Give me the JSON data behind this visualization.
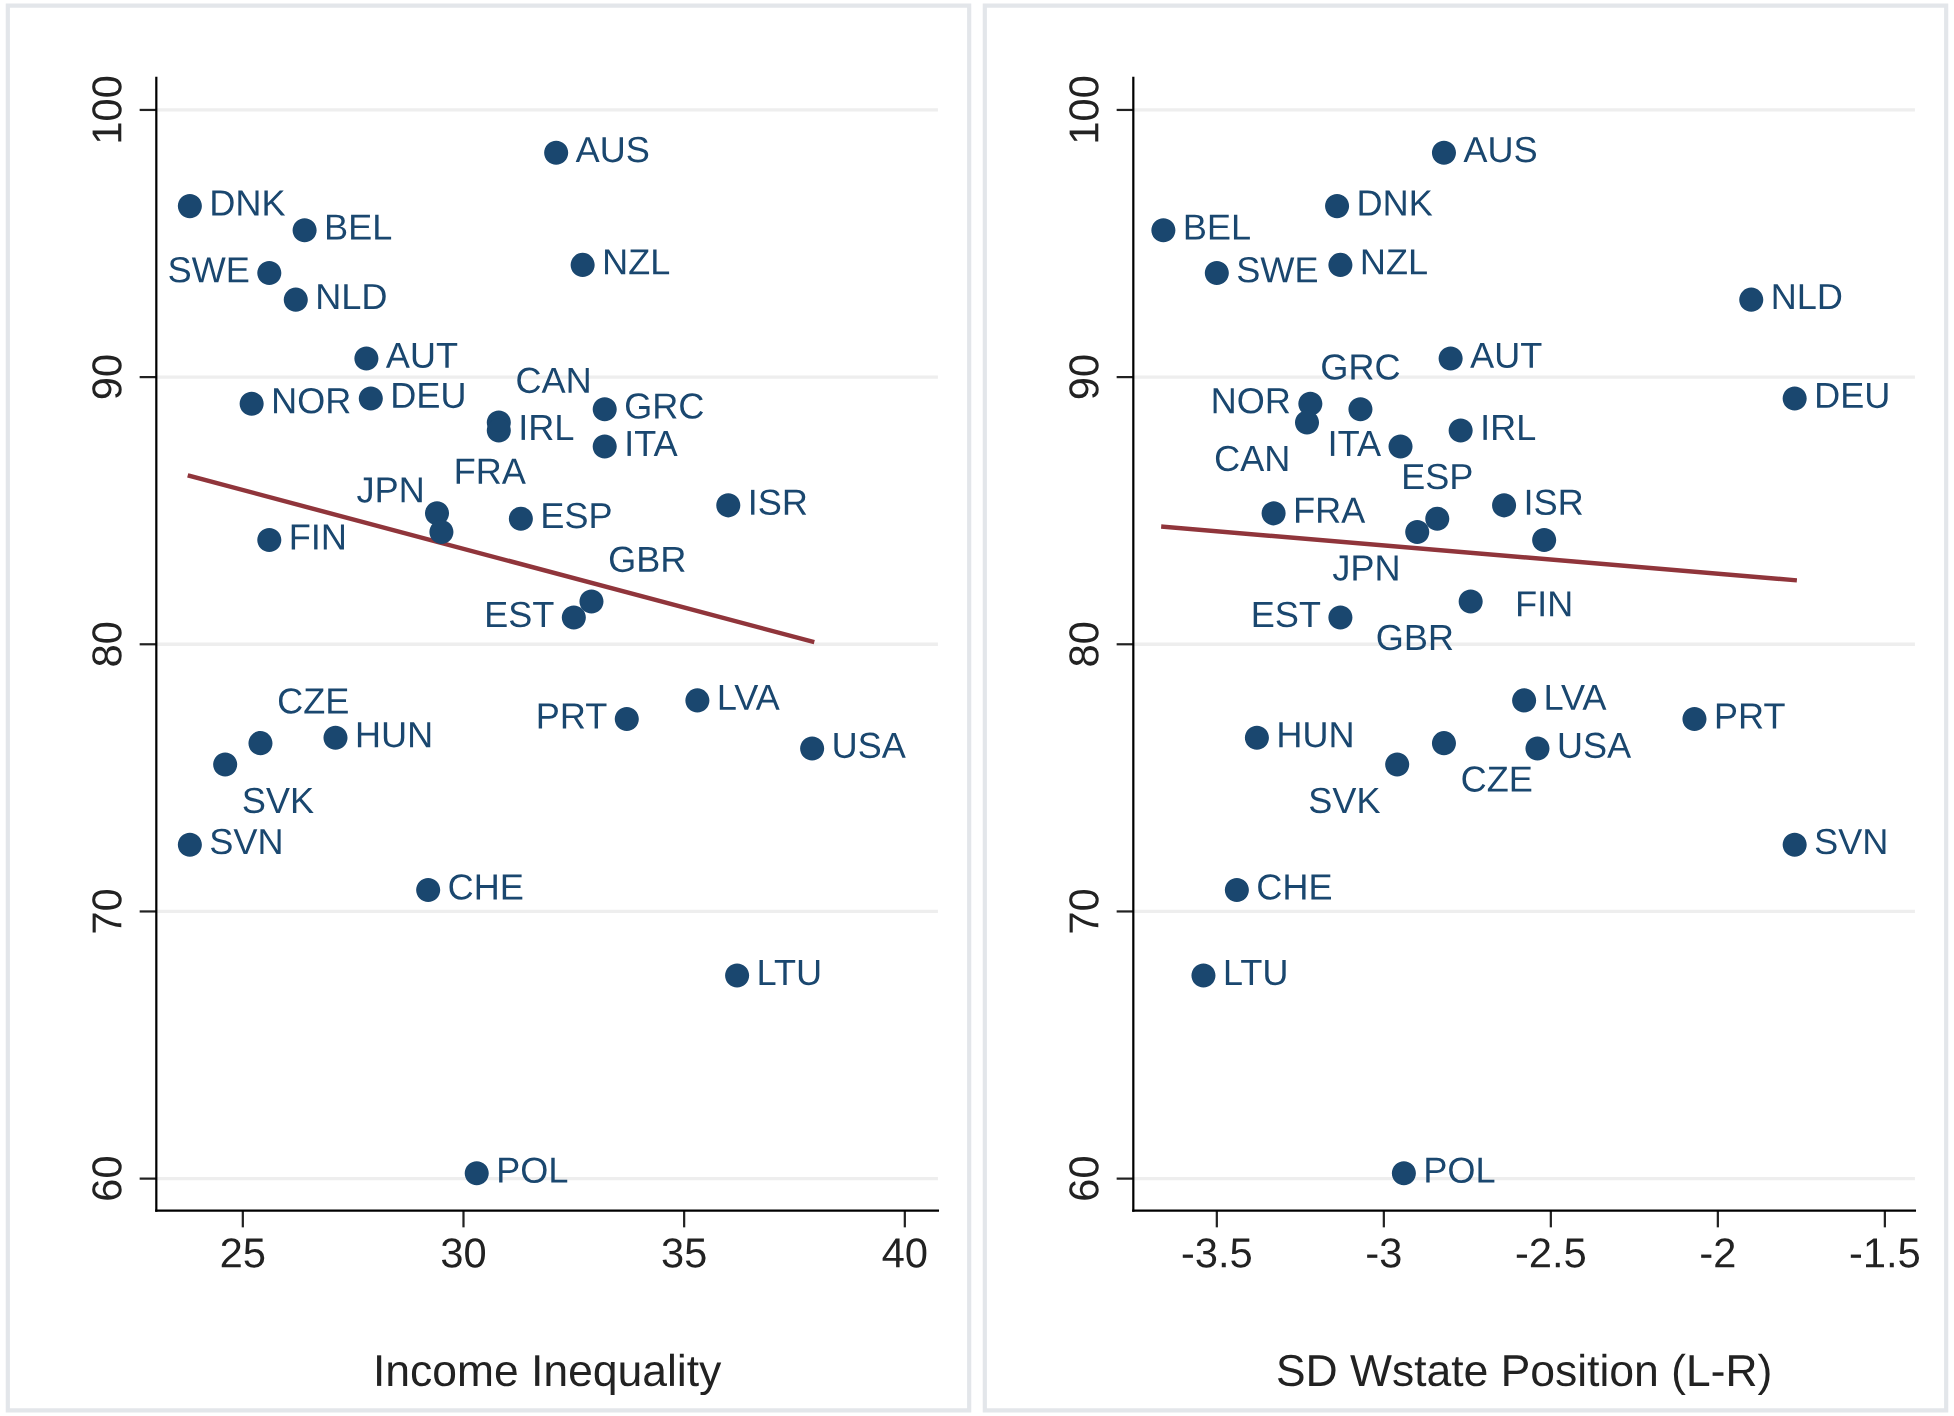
{
  "chart_data": [
    {
      "type": "scatter",
      "xlabel": "Income Inequality",
      "xlim": [
        23.04,
        40.75
      ],
      "ylim": [
        58.8,
        101.2
      ],
      "xticks": [
        25,
        30,
        35,
        40
      ],
      "yticks": [
        60,
        70,
        80,
        90,
        100
      ],
      "grid": "y",
      "series": [
        {
          "marker": "circle",
          "color": "#1a476f",
          "x": [
            32.1,
            23.8,
            26.4,
            25.6,
            26.2,
            32.7,
            27.8,
            25.2,
            27.9,
            30.8,
            30.8,
            33.2,
            33.2,
            36.0,
            29.4,
            29.5,
            31.3,
            25.6,
            32.9,
            32.5,
            35.3,
            33.7,
            25.4,
            27.1,
            24.6,
            37.9,
            23.8,
            29.2,
            36.2,
            30.3
          ],
          "values": [
            98.4,
            96.4,
            95.5,
            93.9,
            92.9,
            94.2,
            90.7,
            89.0,
            89.2,
            88.3,
            88.0,
            88.8,
            87.4,
            85.2,
            84.9,
            84.2,
            84.7,
            83.9,
            81.6,
            81.0,
            77.9,
            77.2,
            76.3,
            76.5,
            75.5,
            76.1,
            72.5,
            70.8,
            67.6,
            60.2
          ]
        },
        {
          "type": "line",
          "color": "#90353b",
          "x": [
            23.8,
            37.9
          ],
          "values": [
            86.3,
            80.1
          ]
        }
      ],
      "annotations": [
        {
          "text": "AUS",
          "x": 32.1,
          "y": 98.4
        },
        {
          "text": "DNK",
          "x": 23.8,
          "y": 96.4
        },
        {
          "text": "BEL",
          "x": 26.4,
          "y": 95.5
        },
        {
          "text": "SWE",
          "x": 25.6,
          "y": 93.9
        },
        {
          "text": "NLD",
          "x": 26.2,
          "y": 92.9
        },
        {
          "text": "NZL",
          "x": 32.7,
          "y": 94.2
        },
        {
          "text": "AUT",
          "x": 27.8,
          "y": 90.7
        },
        {
          "text": "NOR",
          "x": 25.2,
          "y": 89.0
        },
        {
          "text": "DEU",
          "x": 27.9,
          "y": 89.2
        },
        {
          "text": "CAN",
          "x": 30.8,
          "y": 88.3
        },
        {
          "text": "IRL",
          "x": 30.8,
          "y": 88.0
        },
        {
          "text": "GRC",
          "x": 33.2,
          "y": 88.8
        },
        {
          "text": "ITA",
          "x": 33.2,
          "y": 87.4
        },
        {
          "text": "ISR",
          "x": 36.0,
          "y": 85.2
        },
        {
          "text": "FRA",
          "x": 29.4,
          "y": 84.9
        },
        {
          "text": "JPN",
          "x": 29.5,
          "y": 84.2
        },
        {
          "text": "ESP",
          "x": 31.3,
          "y": 84.7
        },
        {
          "text": "FIN",
          "x": 25.6,
          "y": 83.9
        },
        {
          "text": "GBR",
          "x": 32.9,
          "y": 81.6
        },
        {
          "text": "EST",
          "x": 32.5,
          "y": 81.0
        },
        {
          "text": "LVA",
          "x": 35.3,
          "y": 77.9
        },
        {
          "text": "PRT",
          "x": 33.7,
          "y": 77.2
        },
        {
          "text": "CZE",
          "x": 25.4,
          "y": 76.3
        },
        {
          "text": "HUN",
          "x": 27.1,
          "y": 76.5
        },
        {
          "text": "SVK",
          "x": 24.6,
          "y": 75.5
        },
        {
          "text": "USA",
          "x": 37.9,
          "y": 76.1
        },
        {
          "text": "SVN",
          "x": 23.8,
          "y": 72.5
        },
        {
          "text": "CHE",
          "x": 29.2,
          "y": 70.8
        },
        {
          "text": "LTU",
          "x": 36.2,
          "y": 67.6
        },
        {
          "text": "POL",
          "x": 30.3,
          "y": 60.2
        }
      ]
    },
    {
      "type": "scatter",
      "xlabel": "SD Wstate Position (L-R)",
      "xlim": [
        -3.75,
        -1.41
      ],
      "ylim": [
        58.8,
        101.2
      ],
      "xticks": [
        -3.5,
        -3,
        -2.5,
        -2,
        -1.5
      ],
      "yticks": [
        60,
        70,
        80,
        90,
        100
      ],
      "grid": "y",
      "series": [
        {
          "marker": "circle",
          "color": "#1a476f",
          "x": [
            -2.82,
            -3.14,
            -3.66,
            -3.5,
            -3.13,
            -1.9,
            -2.8,
            -3.22,
            -3.07,
            -3.23,
            -2.95,
            -2.77,
            -1.77,
            -2.64,
            -2.84,
            -2.9,
            -3.33,
            -2.52,
            -2.74,
            -3.13,
            -2.58,
            -2.07,
            -3.38,
            -2.82,
            -2.54,
            -2.96,
            -1.77,
            -3.44,
            -3.54,
            -2.94
          ],
          "values": [
            98.4,
            96.4,
            95.5,
            93.9,
            94.2,
            92.9,
            90.7,
            89.0,
            88.8,
            88.3,
            87.4,
            88.0,
            89.2,
            85.2,
            84.7,
            84.2,
            84.9,
            83.9,
            81.6,
            81.0,
            77.9,
            77.2,
            76.5,
            76.3,
            76.1,
            75.5,
            72.5,
            70.8,
            67.6,
            60.2
          ]
        },
        {
          "type": "line",
          "color": "#90353b",
          "x": [
            -3.66,
            -1.77
          ],
          "values": [
            84.4,
            82.4
          ]
        }
      ],
      "annotations": [
        {
          "text": "AUS",
          "x": -2.82,
          "y": 98.4
        },
        {
          "text": "DNK",
          "x": -3.14,
          "y": 96.4
        },
        {
          "text": "BEL",
          "x": -3.66,
          "y": 95.5
        },
        {
          "text": "SWE",
          "x": -3.5,
          "y": 93.9
        },
        {
          "text": "NZL",
          "x": -3.13,
          "y": 94.2
        },
        {
          "text": "NLD",
          "x": -1.9,
          "y": 92.9
        },
        {
          "text": "AUT",
          "x": -2.8,
          "y": 90.7
        },
        {
          "text": "NOR",
          "x": -3.22,
          "y": 89.0
        },
        {
          "text": "GRC",
          "x": -3.07,
          "y": 88.8
        },
        {
          "text": "CAN",
          "x": -3.23,
          "y": 88.3
        },
        {
          "text": "ITA",
          "x": -2.95,
          "y": 87.4
        },
        {
          "text": "IRL",
          "x": -2.77,
          "y": 88.0
        },
        {
          "text": "DEU",
          "x": -1.77,
          "y": 89.2
        },
        {
          "text": "ISR",
          "x": -2.64,
          "y": 85.2
        },
        {
          "text": "ESP",
          "x": -2.84,
          "y": 84.7
        },
        {
          "text": "JPN",
          "x": -2.9,
          "y": 84.2
        },
        {
          "text": "FRA",
          "x": -3.33,
          "y": 84.9
        },
        {
          "text": "FIN",
          "x": -2.52,
          "y": 83.9
        },
        {
          "text": "GBR",
          "x": -2.74,
          "y": 81.6
        },
        {
          "text": "EST",
          "x": -3.13,
          "y": 81.0
        },
        {
          "text": "LVA",
          "x": -2.58,
          "y": 77.9
        },
        {
          "text": "PRT",
          "x": -2.07,
          "y": 77.2
        },
        {
          "text": "HUN",
          "x": -3.38,
          "y": 76.5
        },
        {
          "text": "CZE",
          "x": -2.82,
          "y": 76.3
        },
        {
          "text": "USA",
          "x": -2.54,
          "y": 76.1
        },
        {
          "text": "SVK",
          "x": -2.96,
          "y": 75.5
        },
        {
          "text": "SVN",
          "x": -1.77,
          "y": 72.5
        },
        {
          "text": "CHE",
          "x": -3.44,
          "y": 70.8
        },
        {
          "text": "LTU",
          "x": -3.54,
          "y": 67.6
        },
        {
          "text": "POL",
          "x": -2.94,
          "y": 60.2
        }
      ]
    }
  ]
}
